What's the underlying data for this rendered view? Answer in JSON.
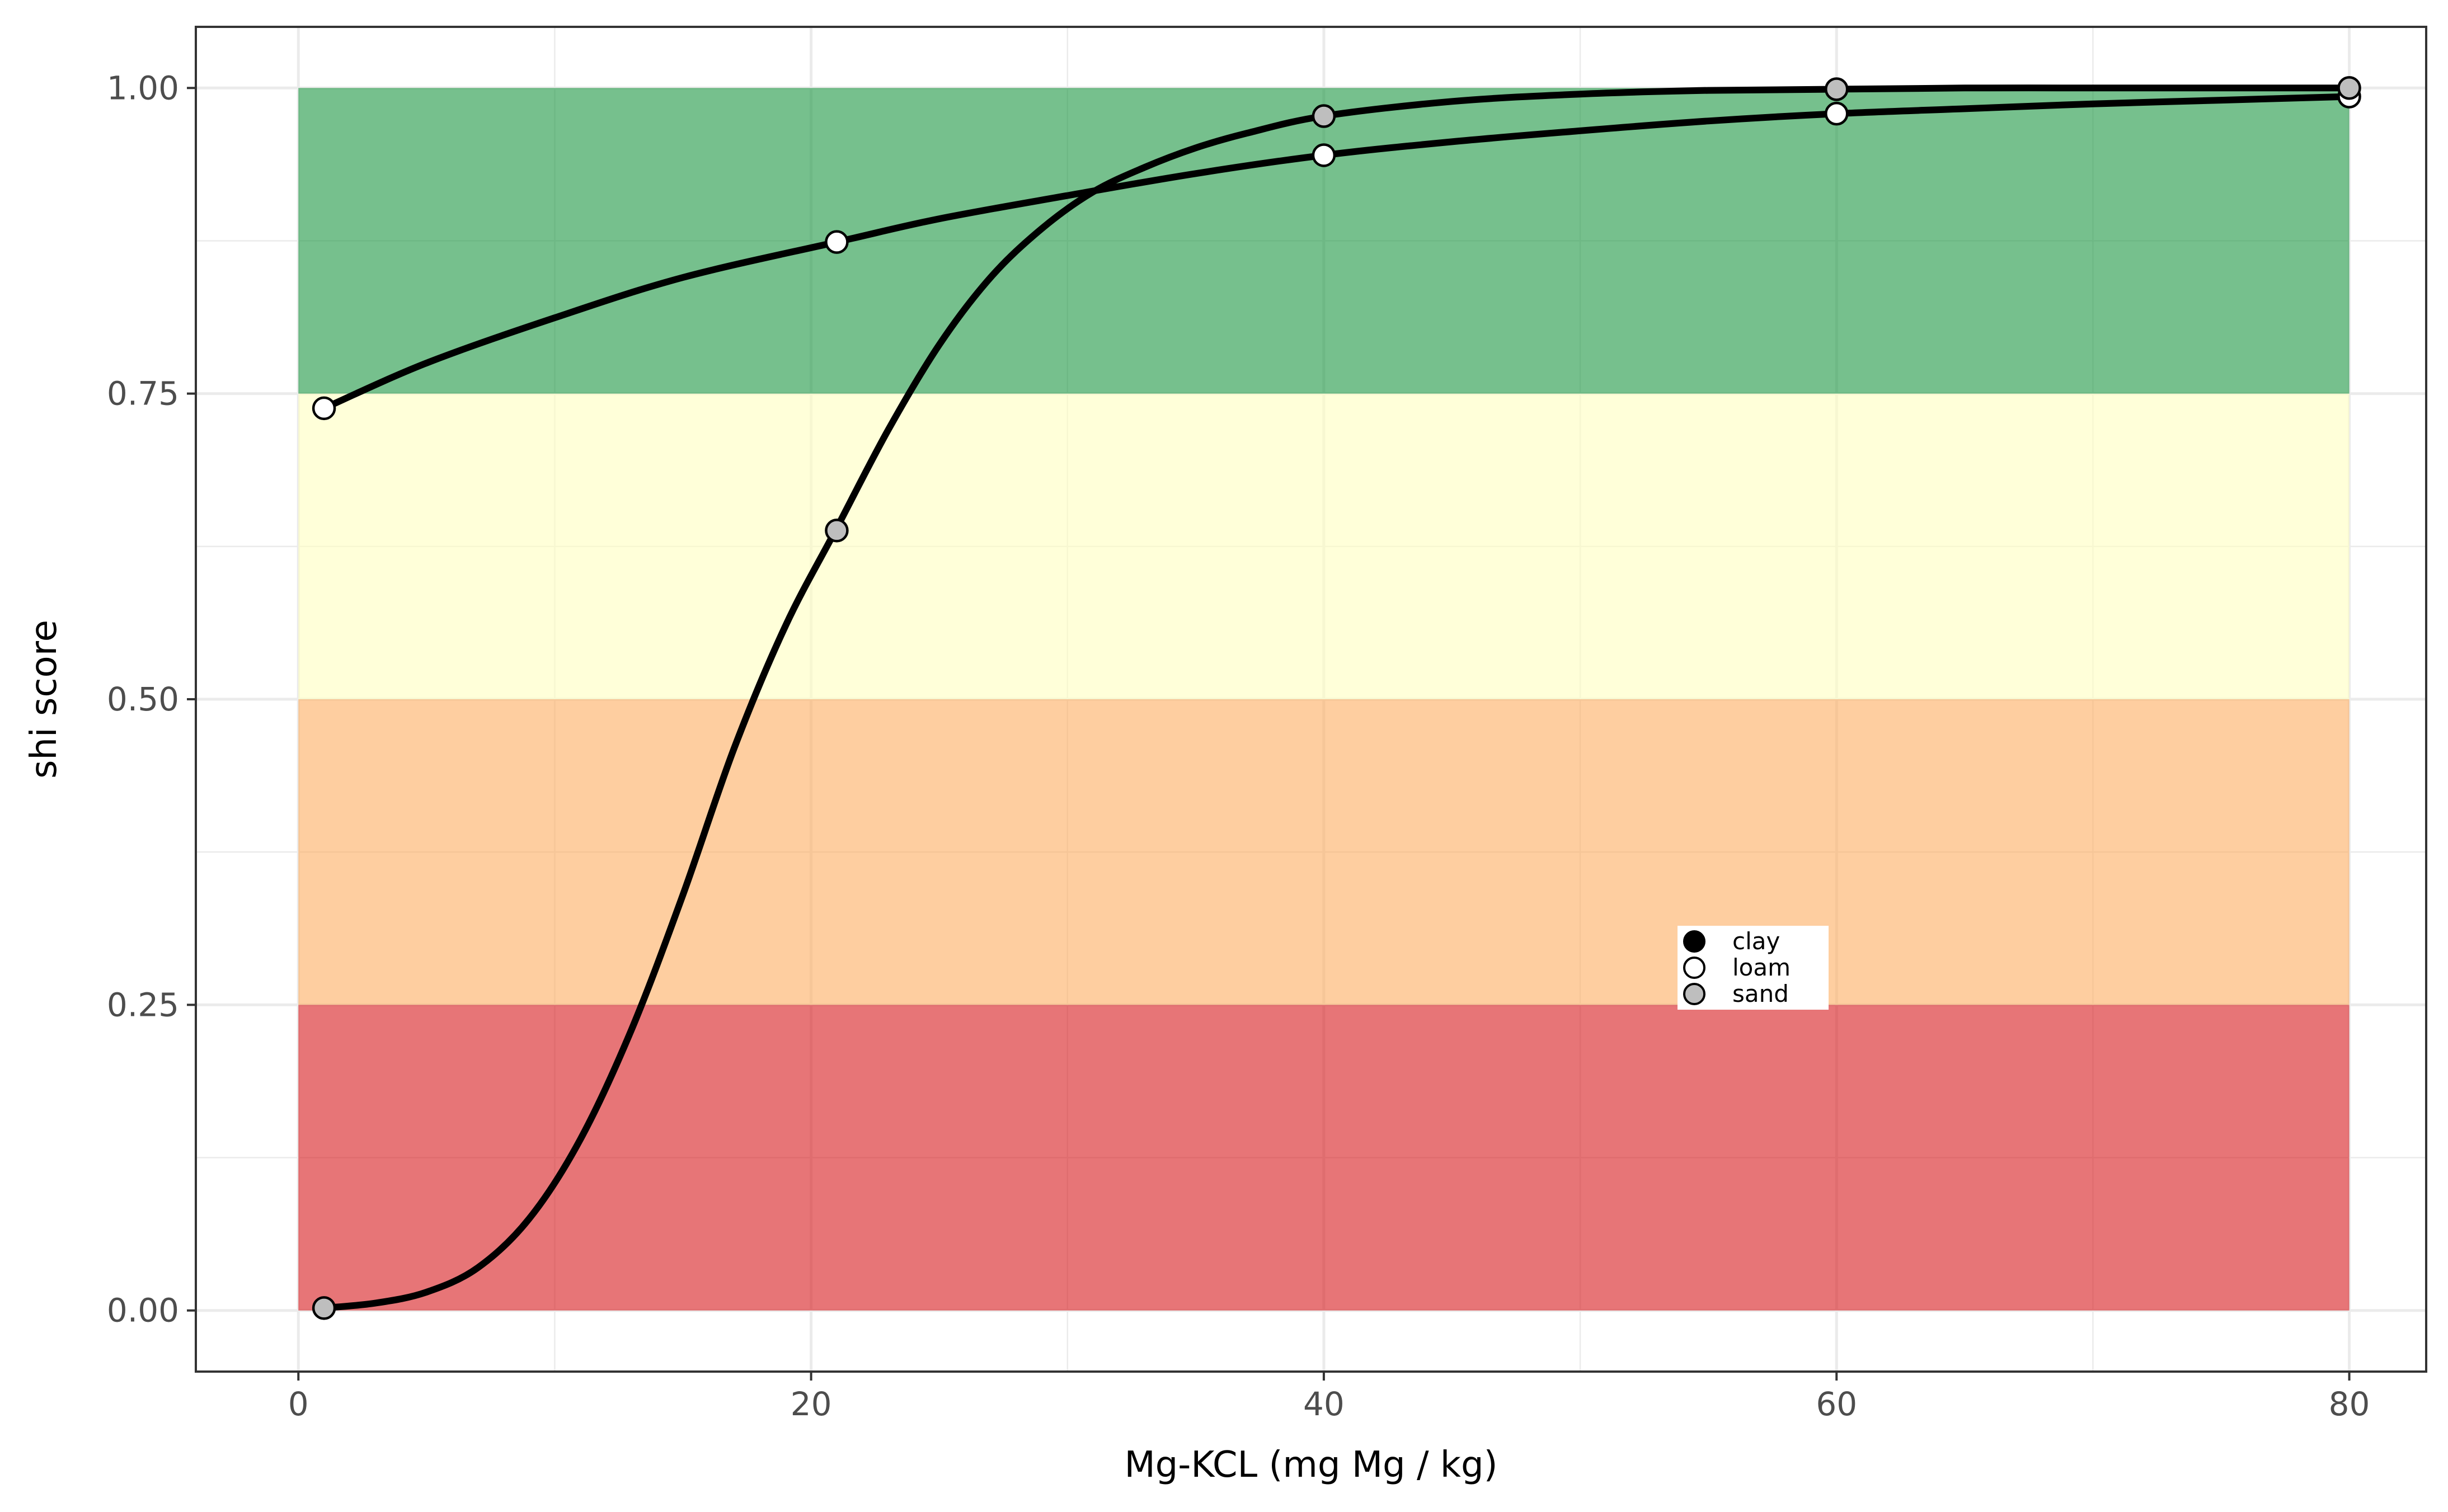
{
  "chart_data": {
    "type": "line",
    "xlabel": "Mg-KCL (mg Mg / kg)",
    "ylabel": "shi score",
    "xlim": [
      -4,
      83
    ],
    "ylim": [
      -0.05,
      1.05
    ],
    "x_ticks": [
      0,
      20,
      40,
      60,
      80
    ],
    "x_tick_labels": [
      "0",
      "20",
      "40",
      "60",
      "80"
    ],
    "y_ticks": [
      0,
      0.25,
      0.5,
      0.75,
      1.0
    ],
    "y_tick_labels": [
      "0.00",
      "0.25",
      "0.50",
      "0.75",
      "1.00"
    ],
    "grid": true,
    "bands": [
      {
        "y0": 0.0,
        "y1": 0.25,
        "x0": 0,
        "x1": 80,
        "color": "#d7191c",
        "opacity": 0.6
      },
      {
        "y0": 0.25,
        "y1": 0.5,
        "x0": 0,
        "x1": 80,
        "color": "#fdae61",
        "opacity": 0.6
      },
      {
        "y0": 0.5,
        "y1": 0.75,
        "x0": 0,
        "x1": 80,
        "color": "#ffffbf",
        "opacity": 0.6
      },
      {
        "y0": 0.75,
        "y1": 1.0,
        "x0": 0,
        "x1": 80,
        "color": "#1a9641",
        "opacity": 0.6
      }
    ],
    "curves": [
      {
        "name": "loam",
        "x": [
          1,
          5,
          10,
          15,
          21,
          25,
          30,
          35,
          40,
          45,
          50,
          55,
          60,
          65,
          70,
          75,
          80
        ],
        "y": [
          0.738,
          0.775,
          0.812,
          0.845,
          0.874,
          0.893,
          0.912,
          0.93,
          0.945,
          0.956,
          0.965,
          0.973,
          0.979,
          0.983,
          0.987,
          0.99,
          0.993
        ]
      },
      {
        "name": "sand",
        "x": [
          1,
          3,
          5,
          7,
          9,
          11,
          13,
          15,
          17,
          19,
          21,
          23,
          25,
          27,
          29,
          31,
          33,
          35,
          37,
          40,
          45,
          50,
          55,
          60,
          65,
          70,
          75,
          80
        ],
        "y": [
          0.002,
          0.006,
          0.015,
          0.035,
          0.075,
          0.14,
          0.23,
          0.34,
          0.46,
          0.56,
          0.64,
          0.72,
          0.79,
          0.845,
          0.885,
          0.915,
          0.935,
          0.951,
          0.963,
          0.977,
          0.989,
          0.995,
          0.998,
          0.999,
          1.0,
          1.0,
          1.0,
          1.0
        ]
      }
    ],
    "points": [
      {
        "x": 1,
        "y": 0.738,
        "group": "loam"
      },
      {
        "x": 21,
        "y": 0.874,
        "group": "loam"
      },
      {
        "x": 40,
        "y": 0.945,
        "group": "loam"
      },
      {
        "x": 60,
        "y": 0.979,
        "group": "loam"
      },
      {
        "x": 80,
        "y": 0.993,
        "group": "loam"
      },
      {
        "x": 1,
        "y": 0.002,
        "group": "sand"
      },
      {
        "x": 21,
        "y": 0.638,
        "group": "sand"
      },
      {
        "x": 40,
        "y": 0.977,
        "group": "sand"
      },
      {
        "x": 60,
        "y": 0.999,
        "group": "sand"
      },
      {
        "x": 80,
        "y": 1.0,
        "group": "sand"
      }
    ],
    "legend": {
      "position": "inside-center-right",
      "entries": [
        {
          "label": "clay",
          "fill": "#000000"
        },
        {
          "label": "loam",
          "fill": "#ffffff"
        },
        {
          "label": "sand",
          "fill": "#bebebe"
        }
      ]
    }
  }
}
